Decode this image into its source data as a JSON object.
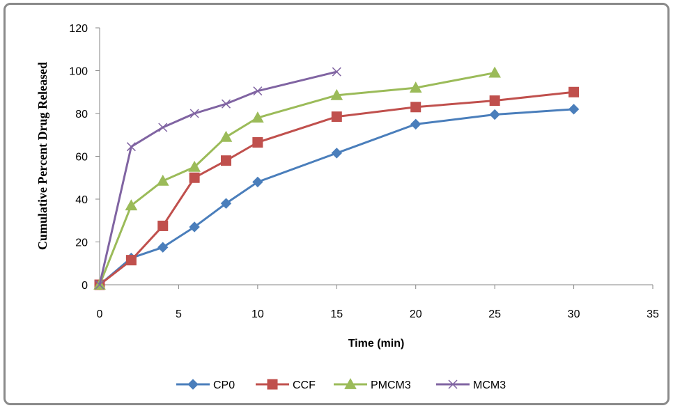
{
  "chart_data": {
    "type": "line",
    "title": "",
    "xlabel": "Time (min)",
    "ylabel": "Cumulative Percent Drug Released",
    "xlim": [
      0,
      35
    ],
    "ylim": [
      0,
      120
    ],
    "xticks": [
      0,
      5,
      10,
      15,
      20,
      25,
      30,
      35
    ],
    "yticks": [
      0,
      20,
      40,
      60,
      80,
      100,
      120
    ],
    "grid": false,
    "legend_position": "bottom",
    "series": [
      {
        "name": "CP0",
        "color": "#4a7ebb",
        "marker": "diamond",
        "x": [
          0,
          2,
          4,
          6,
          8,
          10,
          15,
          20,
          25,
          30
        ],
        "y": [
          0,
          12.5,
          17.5,
          27,
          38,
          48,
          61.5,
          75,
          79.5,
          82
        ]
      },
      {
        "name": "CCF",
        "color": "#c0504d",
        "marker": "square",
        "x": [
          0,
          2,
          4,
          6,
          8,
          10,
          15,
          20,
          25,
          30
        ],
        "y": [
          0,
          11.5,
          27.5,
          50,
          58,
          66.5,
          78.5,
          83,
          86,
          90
        ]
      },
      {
        "name": "PMCM3",
        "color": "#9bbb59",
        "marker": "triangle",
        "x": [
          0,
          2,
          4,
          6,
          8,
          10,
          15,
          20,
          25
        ],
        "y": [
          0,
          37,
          48.5,
          55,
          69,
          78,
          88.5,
          92,
          99
        ]
      },
      {
        "name": "MCM3",
        "color": "#8064a2",
        "marker": "x",
        "x": [
          0,
          2,
          4,
          6,
          8,
          10,
          15
        ],
        "y": [
          0,
          64.5,
          73.5,
          80,
          84.5,
          90.5,
          99.5
        ]
      }
    ]
  }
}
